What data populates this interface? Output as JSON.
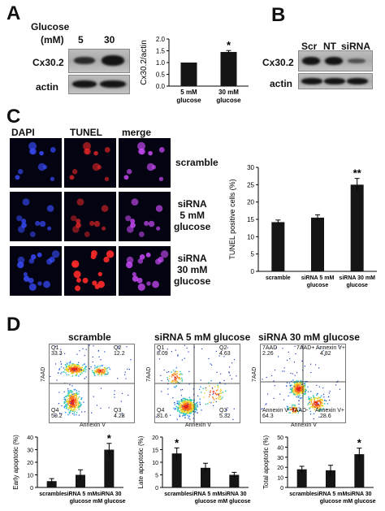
{
  "panels": {
    "a": {
      "letter": "A",
      "glucose_label_line1": "Glucose",
      "glucose_label_line2": "(mM)",
      "lane_5": "5",
      "lane_30": "30",
      "protein": "Cx30.2",
      "loading": "actin"
    },
    "b": {
      "letter": "B",
      "lane_scr": "Scr",
      "lane_nt": "NT",
      "lane_sirna": "siRNA",
      "protein": "Cx30.2",
      "loading": "actin"
    },
    "c": {
      "letter": "C",
      "col_dapi": "DAPI",
      "col_tunel": "TUNEL",
      "col_merge": "merge",
      "row1": "scramble",
      "row2_l1": "siRNA",
      "row2_l2": "5 mM",
      "row2_l3": "glucose",
      "row3_l1": "siRNA",
      "row3_l2": "30 mM",
      "row3_l3": "glucose"
    },
    "d": {
      "letter": "D",
      "flow_titles": [
        "scramble",
        "siRNA 5 mM glucose",
        "siRNA 30 mM glucose"
      ],
      "flow_xlabel": "Annexin V",
      "flow_ylabel": "7AAD",
      "quadrants": [
        {
          "q1": "Q1",
          "q1v": "33.3",
          "q2": "Q2",
          "q2v": "12.2",
          "q4": "Q4",
          "q4v": "50.2",
          "q3": "Q3",
          "q3v": "4.28"
        },
        {
          "q1": "Q1",
          "q1v": "8.09",
          "q2": "Q2",
          "q2v": "4.63",
          "q4": "Q4",
          "q4v": "81.6",
          "q3": "Q3",
          "q3v": "5.32"
        },
        {
          "q1": "7AAD",
          "q1v": "2.26",
          "q2": "7AAD+ Annexin V+",
          "q2v": "4.82",
          "q4": "Annexin V- 7AAD-",
          "q4v": "64.3",
          "q3": "Annexin V+",
          "q3v": "28.6"
        }
      ]
    }
  },
  "colors": {
    "bar": "#151515",
    "dapi": "#3a4cff",
    "tunel": "#ff2a2a",
    "merge": "#d04cff"
  },
  "chart_data": [
    {
      "type": "bar",
      "categories": [
        "5 mM glucose",
        "30 mM glucose"
      ],
      "values": [
        1.0,
        1.45
      ],
      "errors": [
        0.0,
        0.06
      ],
      "significance": [
        "",
        "*"
      ],
      "ylabel": "Cx30.2/actin",
      "ylim": [
        0,
        2.0
      ],
      "yticks": [
        "0.0",
        "0.5",
        "1.0",
        "1.5",
        "2.0"
      ],
      "grid": false
    },
    {
      "type": "bar",
      "categories": [
        "scramble",
        "siRNA 5 mM glucose",
        "siRNA 30 mM glucose"
      ],
      "values": [
        14.2,
        15.5,
        25.0
      ],
      "errors": [
        0.6,
        0.8,
        1.8
      ],
      "significance": [
        "",
        "",
        "**"
      ],
      "ylabel": "TUNEL positive cells (%)",
      "ylim": [
        0,
        30
      ],
      "yticks": [
        "0",
        "5",
        "10",
        "15",
        "20",
        "25",
        "30"
      ],
      "grid": false
    },
    {
      "type": "bar",
      "categories": [
        "scramble",
        "siRNA 5 mM glucose",
        "siRNA 30 mM glucose"
      ],
      "values": [
        5,
        10,
        30
      ],
      "errors": [
        2,
        4,
        5
      ],
      "significance": [
        "",
        "",
        "*"
      ],
      "ylabel": "Early apoptotic (%)",
      "ylim": [
        0,
        40
      ],
      "yticks": [
        "0",
        "10",
        "20",
        "30",
        "40"
      ],
      "grid": false
    },
    {
      "type": "bar",
      "categories": [
        "scramble",
        "siRNA 5 mM glucose",
        "siRNA 30 mM glucose"
      ],
      "values": [
        13.5,
        7.8,
        5.0
      ],
      "errors": [
        2.2,
        1.8,
        1.0
      ],
      "significance": [
        "*",
        "",
        ""
      ],
      "ylabel": "Late apoptotic (%)",
      "ylim": [
        0,
        20
      ],
      "yticks": [
        "0",
        "5",
        "10",
        "15",
        "20"
      ],
      "grid": false
    },
    {
      "type": "bar",
      "categories": [
        "scramble",
        "siRNA 5 mM glucose",
        "siRNA 30 mM glucose"
      ],
      "values": [
        18,
        17,
        33
      ],
      "errors": [
        3,
        5,
        6
      ],
      "significance": [
        "",
        "",
        "*"
      ],
      "ylabel": "Total apoptotic (%)",
      "ylim": [
        0,
        50
      ],
      "yticks": [
        "0",
        "10",
        "20",
        "30",
        "40",
        "50"
      ],
      "grid": false
    }
  ]
}
